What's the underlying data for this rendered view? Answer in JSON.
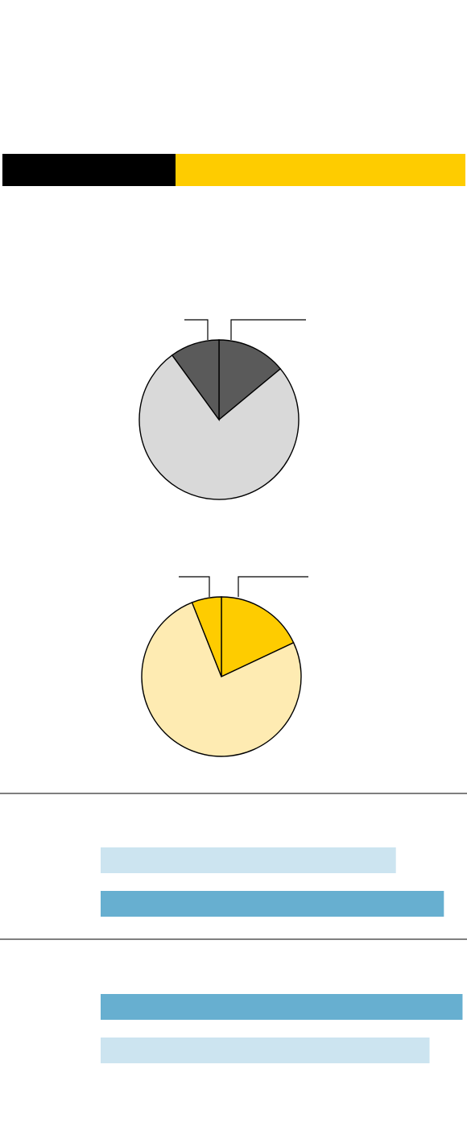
{
  "colors": {
    "black": "#000000",
    "yellow": "#fecc00",
    "dark_gray": "#5a5a5a",
    "light_gray": "#d9d9d9",
    "light_yellow": "#feebb2",
    "blue_dark": "#67afd0",
    "blue_light": "#cce4f0",
    "divider": "#333333"
  },
  "chart_data": [
    {
      "type": "pie",
      "values": [
        14,
        76,
        10
      ],
      "colors": [
        "#5a5a5a",
        "#d9d9d9",
        "#5a5a5a"
      ],
      "labels": [
        "",
        "",
        ""
      ]
    },
    {
      "type": "pie",
      "values": [
        18,
        76,
        6
      ],
      "colors": [
        "#fecc00",
        "#feebb2",
        "#fecc00"
      ],
      "labels": [
        "",
        "",
        ""
      ]
    },
    {
      "type": "bar",
      "orientation": "horizontal",
      "categories": [
        "",
        ""
      ],
      "values": [
        82.4,
        95.8
      ],
      "colors": [
        "#cce4f0",
        "#67afd0"
      ],
      "xlim": [
        0,
        100
      ]
    },
    {
      "type": "bar",
      "orientation": "horizontal",
      "categories": [
        "",
        ""
      ],
      "values": [
        101,
        91.8
      ],
      "colors": [
        "#67afd0",
        "#cce4f0"
      ],
      "xlim": [
        0,
        100
      ]
    }
  ]
}
